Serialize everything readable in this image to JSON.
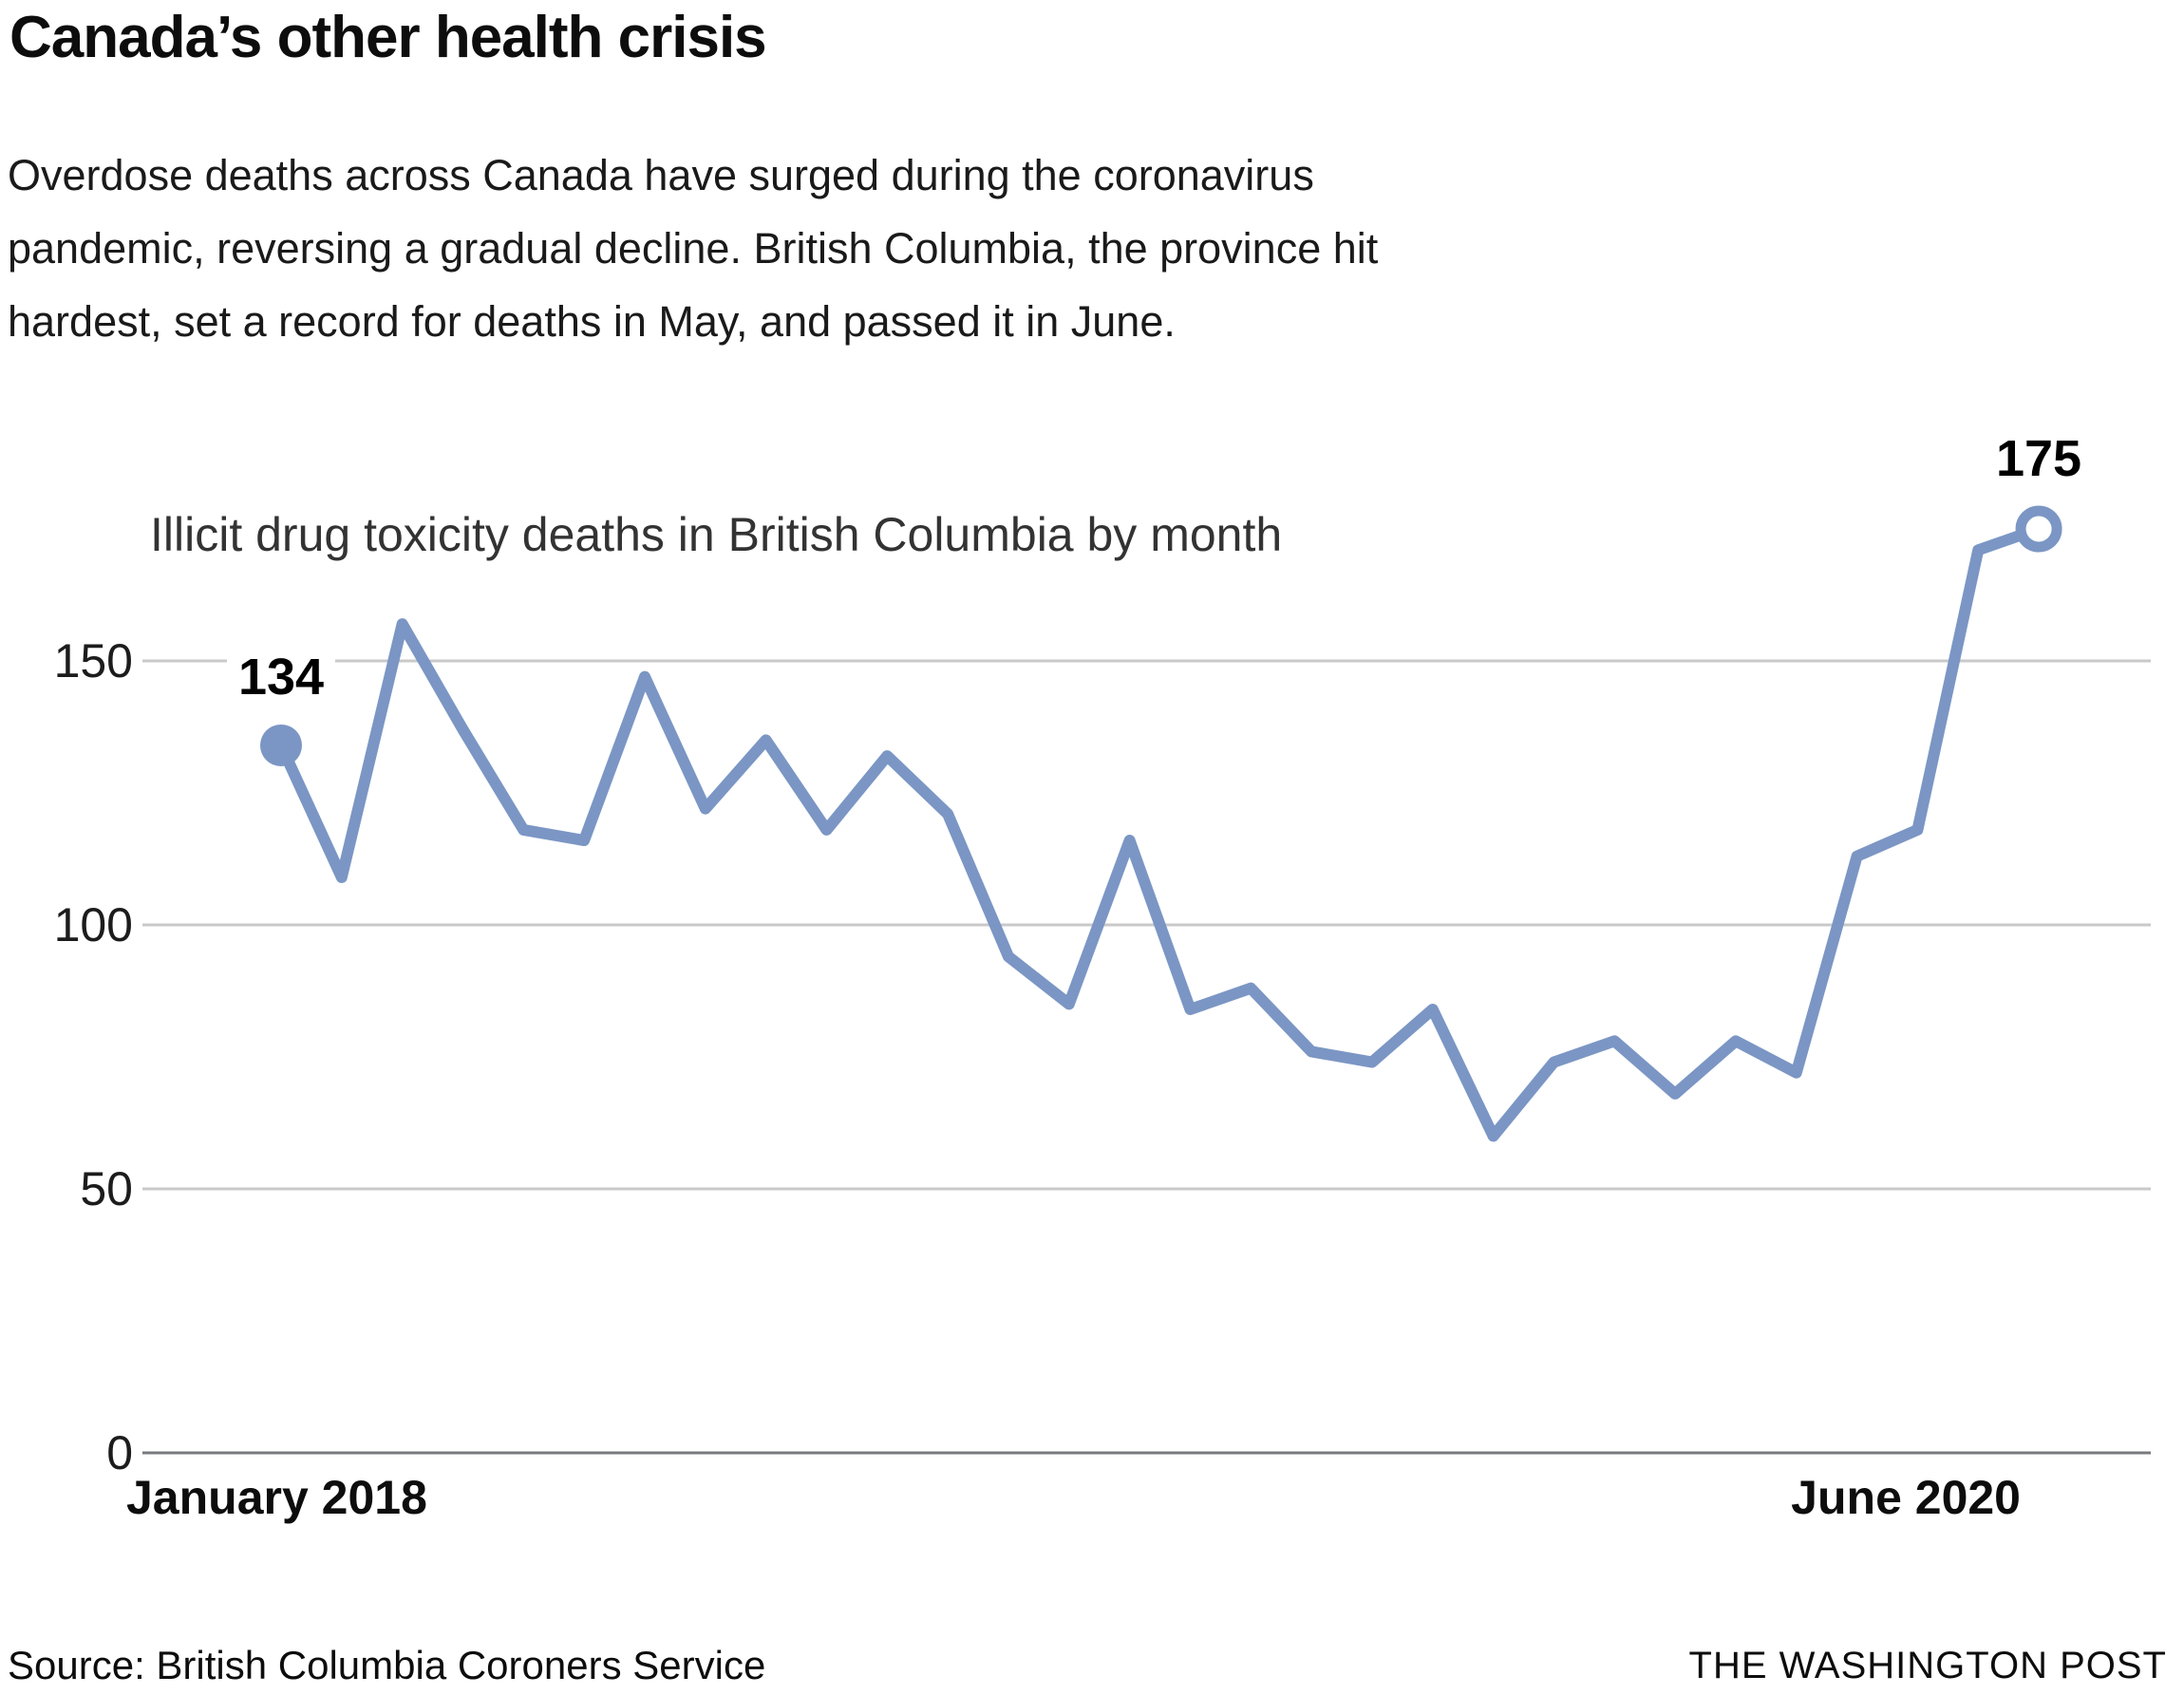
{
  "title": "Canada’s other health crisis",
  "subtitle_lines": [
    "Overdose deaths across Canada have surged during the coronavirus",
    "pandemic, reversing a gradual decline. British Columbia, the province hit",
    "hardest, set a record for deaths in May, and passed it in June."
  ],
  "chart": {
    "label": "Illicit drug toxicity deaths in British Columbia by month",
    "first_point_label": "134",
    "last_point_label": "175",
    "y_ticks": [
      "150",
      "100",
      "50",
      "0"
    ],
    "x_axis": {
      "start_label": "January 2018",
      "end_label": "June 2020"
    }
  },
  "footer": {
    "source": "Source: British Columbia Coroners Service",
    "credit": "THE WASHINGTON POST"
  },
  "colors": {
    "line": "#7b96c4",
    "grid": "#c9c9c9",
    "axis": "#77797c",
    "marker_open_fill": "#ffffff"
  },
  "chart_data": {
    "type": "line",
    "title": "Illicit drug toxicity deaths in British Columbia by month",
    "x": [
      "Jan 2018",
      "Feb 2018",
      "Mar 2018",
      "Apr 2018",
      "May 2018",
      "Jun 2018",
      "Jul 2018",
      "Aug 2018",
      "Sep 2018",
      "Oct 2018",
      "Nov 2018",
      "Dec 2018",
      "Jan 2019",
      "Feb 2019",
      "Mar 2019",
      "Apr 2019",
      "May 2019",
      "Jun 2019",
      "Jul 2019",
      "Aug 2019",
      "Sep 2019",
      "Oct 2019",
      "Nov 2019",
      "Dec 2019",
      "Jan 2020",
      "Feb 2020",
      "Mar 2020",
      "Apr 2020",
      "May 2020",
      "Jun 2020"
    ],
    "values": [
      134,
      109,
      157,
      137,
      118,
      116,
      147,
      122,
      135,
      118,
      132,
      121,
      94,
      85,
      116,
      84,
      88,
      76,
      74,
      84,
      60,
      74,
      78,
      68,
      78,
      72,
      113,
      118,
      171,
      175
    ],
    "ylabel": "",
    "xlabel": "",
    "ylim": [
      0,
      180
    ],
    "yticks": [
      0,
      50,
      100,
      150
    ],
    "grid": "horizontal",
    "legend": "none",
    "annotations": [
      {
        "index": 0,
        "label": "134",
        "marker": "filled-circle"
      },
      {
        "index": 29,
        "label": "175",
        "marker": "open-circle"
      }
    ]
  }
}
